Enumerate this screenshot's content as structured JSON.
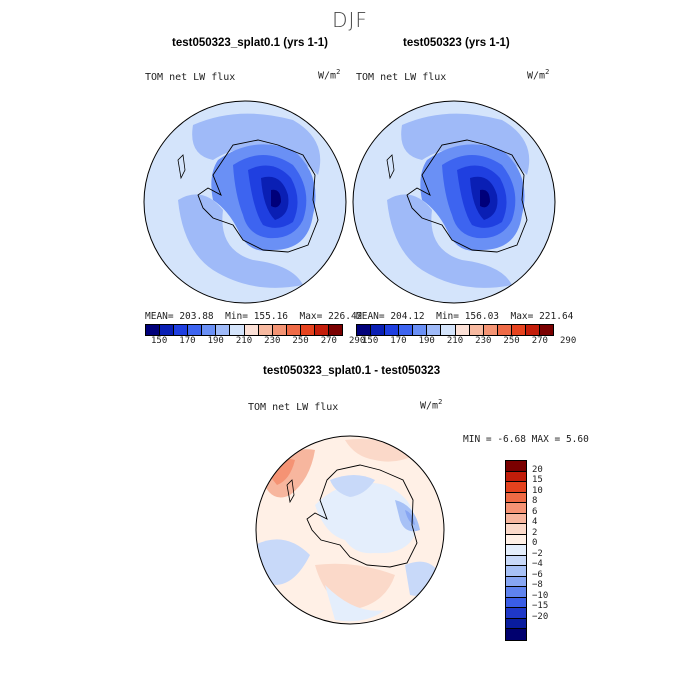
{
  "figure": {
    "season_title": "DJF",
    "diff_title": "test050323_splat0.1 - test050323"
  },
  "panels": [
    {
      "title": "test050323_splat0.1 (yrs 1-1)",
      "variable": "TOM net LW flux",
      "units_base": "W/m",
      "units_exp": "2",
      "mean": "MEAN= 203.88",
      "min": "Min= 155.16",
      "max": "Max= 226.42"
    },
    {
      "title": "test050323 (yrs 1-1)",
      "variable": "TOM net LW flux",
      "units_base": "W/m",
      "units_exp": "2",
      "mean": "MEAN= 204.12",
      "min": "Min= 156.03",
      "max": "Max= 221.64"
    }
  ],
  "diff_panel": {
    "variable": "TOM net LW flux",
    "units_base": "W/m",
    "units_exp": "2",
    "stats": "MIN =   -6.68 MAX =    5.60"
  },
  "colors": {
    "abs_scale": [
      "#00007a",
      "#0a1fb4",
      "#1f3fe0",
      "#3d64f0",
      "#6a90f5",
      "#9fbaf8",
      "#d4e4fb",
      "#fbe0d6",
      "#f7b9a0",
      "#f49474",
      "#ef6b47",
      "#e6431f",
      "#c41e0b",
      "#7a0000"
    ],
    "diff_scale": [
      "#7a0000",
      "#c11d0a",
      "#e4421e",
      "#ef6a44",
      "#f59374",
      "#f7b69e",
      "#fbd9c9",
      "#fff0e6",
      "#e4eefc",
      "#c8d9f9",
      "#a7c1f6",
      "#87a6f3",
      "#5f83ee",
      "#3a5de6",
      "#1f38c8",
      "#091c9e",
      "#00006e"
    ]
  },
  "chart_data": [
    {
      "type": "heatmap",
      "projection": "south-polar-stereographic",
      "region": "Antarctica",
      "title": "test050323_splat0.1 (yrs 1-1)",
      "variable": "TOM net LW flux",
      "units": "W/m^2",
      "mean": 203.88,
      "min": 155.16,
      "max": 226.42,
      "colorbar_levels": [
        150,
        170,
        190,
        210,
        230,
        250,
        270,
        290
      ]
    },
    {
      "type": "heatmap",
      "projection": "south-polar-stereographic",
      "region": "Antarctica",
      "title": "test050323 (yrs 1-1)",
      "variable": "TOM net LW flux",
      "units": "W/m^2",
      "mean": 204.12,
      "min": 156.03,
      "max": 221.64,
      "colorbar_levels": [
        150,
        170,
        190,
        210,
        230,
        250,
        270,
        290
      ]
    },
    {
      "type": "heatmap",
      "projection": "south-polar-stereographic",
      "region": "Antarctica",
      "title": "test050323_splat0.1 - test050323",
      "variable": "TOM net LW flux",
      "units": "W/m^2",
      "min": -6.68,
      "max": 5.6,
      "colorbar_levels": [
        20,
        15,
        10,
        8,
        6,
        4,
        2,
        0,
        -2,
        -4,
        -6,
        -8,
        -10,
        -15,
        -20
      ]
    }
  ]
}
